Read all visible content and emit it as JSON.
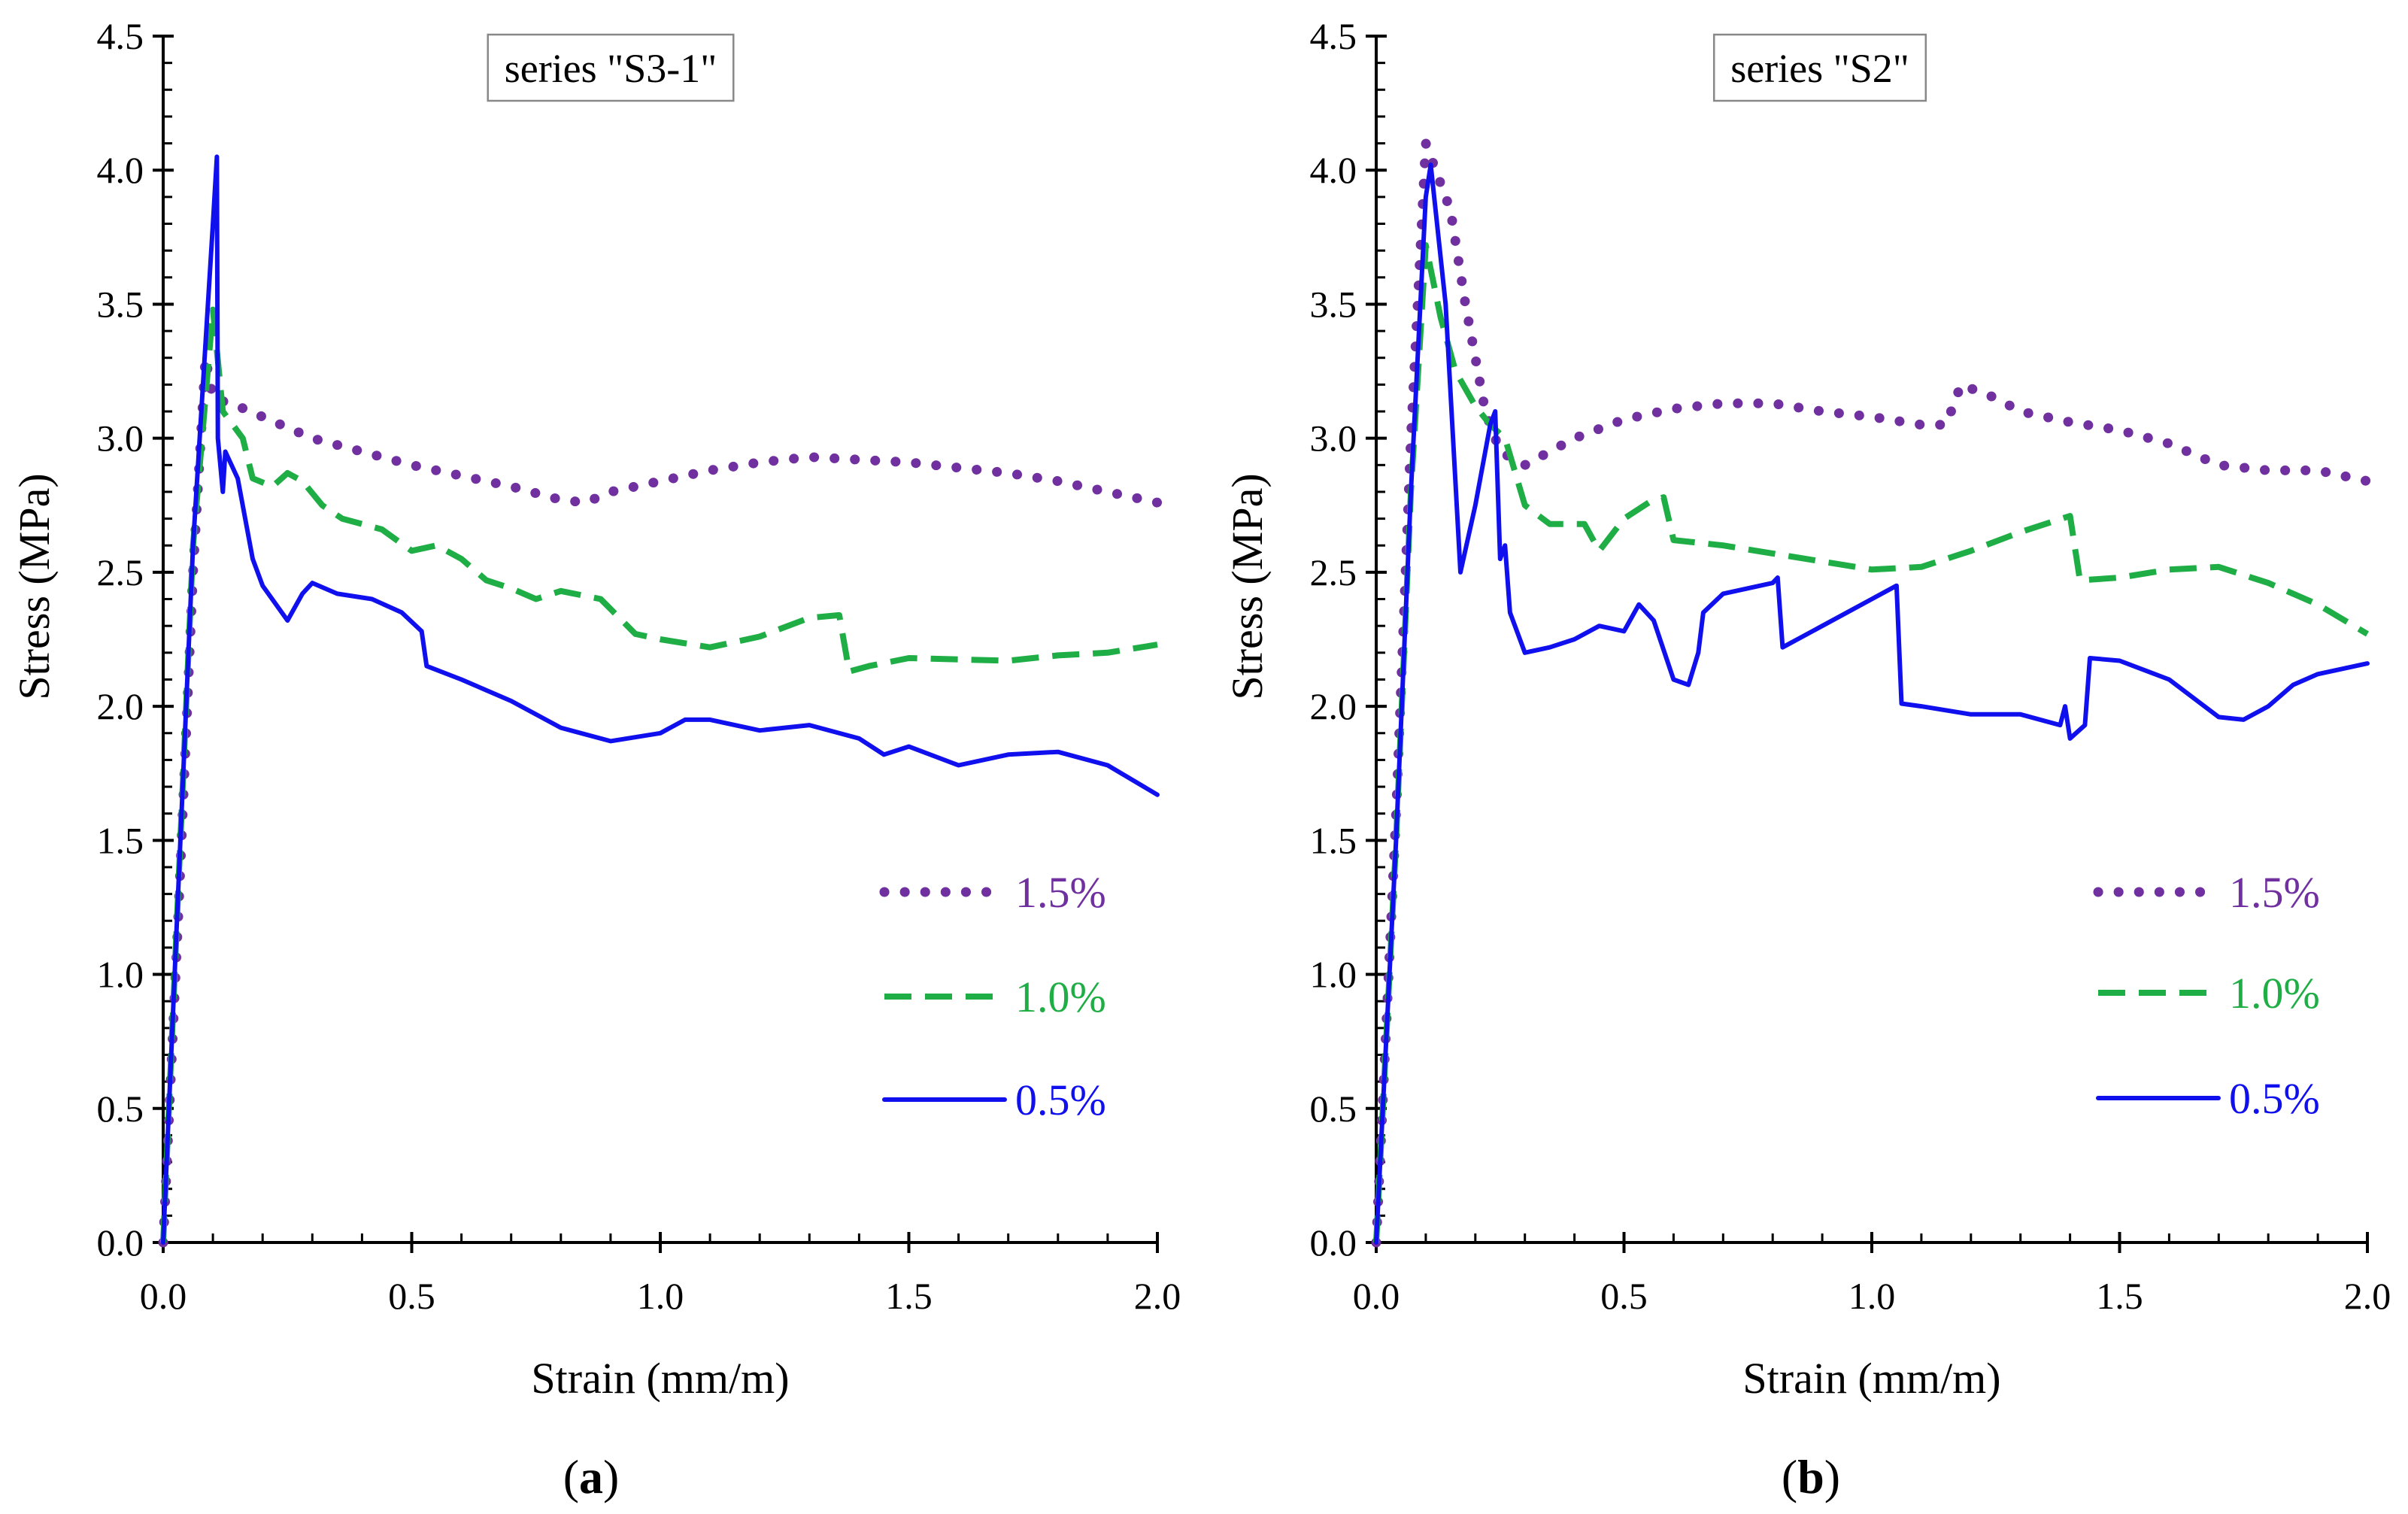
{
  "chart_data": [
    {
      "type": "line",
      "title": "series \"S3-1\"",
      "panel_label": "a",
      "xlabel": "Strain (mm/m)",
      "ylabel": "Stress (MPa)",
      "xlim": [
        0,
        2.0
      ],
      "ylim": [
        0,
        4.5
      ],
      "xticks": [
        "0.0",
        "0.5",
        "1.0",
        "1.5",
        "2.0"
      ],
      "yticks": [
        "0.0",
        "0.5",
        "1.0",
        "1.5",
        "2.0",
        "2.5",
        "3.0",
        "3.5",
        "4.0",
        "4.5"
      ],
      "grid": false,
      "legend_position": "bottom-right",
      "series": [
        {
          "name": "1.5%",
          "color": "#7030a0",
          "style": "dotted",
          "points": [
            [
              0,
              0
            ],
            [
              0.03,
              1.2
            ],
            [
              0.06,
              2.5
            ],
            [
              0.085,
              3.3
            ],
            [
              0.1,
              3.15
            ],
            [
              0.15,
              3.12
            ],
            [
              0.2,
              3.08
            ],
            [
              0.3,
              3.0
            ],
            [
              0.4,
              2.95
            ],
            [
              0.5,
              2.9
            ],
            [
              0.6,
              2.86
            ],
            [
              0.7,
              2.82
            ],
            [
              0.8,
              2.77
            ],
            [
              0.85,
              2.76
            ],
            [
              0.9,
              2.8
            ],
            [
              1.0,
              2.84
            ],
            [
              1.1,
              2.88
            ],
            [
              1.2,
              2.91
            ],
            [
              1.3,
              2.93
            ],
            [
              1.4,
              2.92
            ],
            [
              1.5,
              2.91
            ],
            [
              1.6,
              2.89
            ],
            [
              1.7,
              2.87
            ],
            [
              1.8,
              2.84
            ],
            [
              1.9,
              2.8
            ],
            [
              2.0,
              2.76
            ]
          ]
        },
        {
          "name": "1.0%",
          "color": "#1fae45",
          "style": "dashed",
          "points": [
            [
              0,
              0
            ],
            [
              0.03,
              1.3
            ],
            [
              0.06,
              2.6
            ],
            [
              0.1,
              3.48
            ],
            [
              0.12,
              3.1
            ],
            [
              0.16,
              3.0
            ],
            [
              0.18,
              2.85
            ],
            [
              0.22,
              2.82
            ],
            [
              0.25,
              2.87
            ],
            [
              0.28,
              2.84
            ],
            [
              0.32,
              2.75
            ],
            [
              0.36,
              2.7
            ],
            [
              0.4,
              2.68
            ],
            [
              0.44,
              2.66
            ],
            [
              0.5,
              2.58
            ],
            [
              0.55,
              2.6
            ],
            [
              0.6,
              2.55
            ],
            [
              0.65,
              2.47
            ],
            [
              0.7,
              2.44
            ],
            [
              0.75,
              2.4
            ],
            [
              0.8,
              2.43
            ],
            [
              0.88,
              2.4
            ],
            [
              0.95,
              2.27
            ],
            [
              1.0,
              2.25
            ],
            [
              1.1,
              2.22
            ],
            [
              1.2,
              2.26
            ],
            [
              1.3,
              2.33
            ],
            [
              1.36,
              2.34
            ],
            [
              1.38,
              2.13
            ],
            [
              1.42,
              2.15
            ],
            [
              1.5,
              2.18
            ],
            [
              1.7,
              2.17
            ],
            [
              1.8,
              2.19
            ],
            [
              1.9,
              2.2
            ],
            [
              2.0,
              2.23
            ]
          ]
        },
        {
          "name": "0.5%",
          "color": "#1010ee",
          "style": "solid",
          "points": [
            [
              0,
              0
            ],
            [
              0.03,
              1.3
            ],
            [
              0.06,
              2.6
            ],
            [
              0.08,
              3.2
            ],
            [
              0.09,
              3.5
            ],
            [
              0.1,
              3.8
            ],
            [
              0.108,
              4.05
            ],
            [
              0.11,
              3.0
            ],
            [
              0.12,
              2.8
            ],
            [
              0.125,
              2.95
            ],
            [
              0.15,
              2.85
            ],
            [
              0.18,
              2.55
            ],
            [
              0.2,
              2.45
            ],
            [
              0.25,
              2.32
            ],
            [
              0.28,
              2.42
            ],
            [
              0.3,
              2.46
            ],
            [
              0.35,
              2.42
            ],
            [
              0.42,
              2.4
            ],
            [
              0.48,
              2.35
            ],
            [
              0.52,
              2.28
            ],
            [
              0.53,
              2.15
            ],
            [
              0.6,
              2.1
            ],
            [
              0.7,
              2.02
            ],
            [
              0.8,
              1.92
            ],
            [
              0.9,
              1.87
            ],
            [
              1.0,
              1.9
            ],
            [
              1.05,
              1.95
            ],
            [
              1.1,
              1.95
            ],
            [
              1.2,
              1.91
            ],
            [
              1.3,
              1.93
            ],
            [
              1.4,
              1.88
            ],
            [
              1.45,
              1.82
            ],
            [
              1.5,
              1.85
            ],
            [
              1.6,
              1.78
            ],
            [
              1.7,
              1.82
            ],
            [
              1.8,
              1.83
            ],
            [
              1.9,
              1.78
            ],
            [
              2.0,
              1.67
            ]
          ]
        }
      ]
    },
    {
      "type": "line",
      "title": "series \"S2\"",
      "panel_label": "b",
      "xlabel": "Strain (mm/m)",
      "ylabel": "Stress (MPa)",
      "xlim": [
        0,
        2.0
      ],
      "ylim": [
        0,
        4.5
      ],
      "xticks": [
        "0.0",
        "0.5",
        "1.0",
        "1.5",
        "2.0"
      ],
      "yticks": [
        "0.0",
        "0.5",
        "1.0",
        "1.5",
        "2.0",
        "2.5",
        "3.0",
        "3.5",
        "4.0",
        "4.5"
      ],
      "grid": false,
      "legend_position": "bottom-right",
      "series": [
        {
          "name": "1.5%",
          "color": "#7030a0",
          "style": "dotted",
          "points": [
            [
              0,
              0
            ],
            [
              0.04,
              1.6
            ],
            [
              0.07,
              3.0
            ],
            [
              0.1,
              4.1
            ],
            [
              0.15,
              3.85
            ],
            [
              0.18,
              3.5
            ],
            [
              0.22,
              3.1
            ],
            [
              0.25,
              2.95
            ],
            [
              0.3,
              2.9
            ],
            [
              0.4,
              3.0
            ],
            [
              0.5,
              3.07
            ],
            [
              0.6,
              3.11
            ],
            [
              0.7,
              3.13
            ],
            [
              0.8,
              3.13
            ],
            [
              0.9,
              3.1
            ],
            [
              1.0,
              3.08
            ],
            [
              1.1,
              3.05
            ],
            [
              1.15,
              3.05
            ],
            [
              1.18,
              3.2
            ],
            [
              1.25,
              3.15
            ],
            [
              1.3,
              3.1
            ],
            [
              1.4,
              3.06
            ],
            [
              1.5,
              3.03
            ],
            [
              1.6,
              2.98
            ],
            [
              1.7,
              2.9
            ],
            [
              1.8,
              2.88
            ],
            [
              1.9,
              2.88
            ],
            [
              2.0,
              2.84
            ]
          ]
        },
        {
          "name": "1.0%",
          "color": "#1fae45",
          "style": "dashed",
          "points": [
            [
              0,
              0
            ],
            [
              0.04,
              1.5
            ],
            [
              0.07,
              2.8
            ],
            [
              0.1,
              3.72
            ],
            [
              0.13,
              3.45
            ],
            [
              0.16,
              3.25
            ],
            [
              0.2,
              3.12
            ],
            [
              0.23,
              3.05
            ],
            [
              0.26,
              3.0
            ],
            [
              0.3,
              2.75
            ],
            [
              0.35,
              2.68
            ],
            [
              0.42,
              2.68
            ],
            [
              0.45,
              2.58
            ],
            [
              0.5,
              2.7
            ],
            [
              0.55,
              2.76
            ],
            [
              0.58,
              2.78
            ],
            [
              0.6,
              2.62
            ],
            [
              0.7,
              2.6
            ],
            [
              0.8,
              2.57
            ],
            [
              0.9,
              2.54
            ],
            [
              1.0,
              2.51
            ],
            [
              1.1,
              2.52
            ],
            [
              1.2,
              2.58
            ],
            [
              1.3,
              2.65
            ],
            [
              1.4,
              2.71
            ],
            [
              1.42,
              2.47
            ],
            [
              1.5,
              2.48
            ],
            [
              1.6,
              2.51
            ],
            [
              1.7,
              2.52
            ],
            [
              1.8,
              2.46
            ],
            [
              1.9,
              2.38
            ],
            [
              2.0,
              2.27
            ]
          ]
        },
        {
          "name": "0.5%",
          "color": "#1010ee",
          "style": "solid",
          "points": [
            [
              0,
              0
            ],
            [
              0.04,
              1.5
            ],
            [
              0.07,
              2.8
            ],
            [
              0.1,
              3.9
            ],
            [
              0.11,
              4.02
            ],
            [
              0.14,
              3.5
            ],
            [
              0.17,
              2.5
            ],
            [
              0.2,
              2.75
            ],
            [
              0.23,
              3.05
            ],
            [
              0.24,
              3.1
            ],
            [
              0.25,
              2.55
            ],
            [
              0.26,
              2.6
            ],
            [
              0.27,
              2.35
            ],
            [
              0.3,
              2.2
            ],
            [
              0.35,
              2.22
            ],
            [
              0.4,
              2.25
            ],
            [
              0.45,
              2.3
            ],
            [
              0.5,
              2.28
            ],
            [
              0.53,
              2.38
            ],
            [
              0.56,
              2.32
            ],
            [
              0.6,
              2.1
            ],
            [
              0.63,
              2.08
            ],
            [
              0.65,
              2.2
            ],
            [
              0.66,
              2.35
            ],
            [
              0.7,
              2.42
            ],
            [
              0.8,
              2.46
            ],
            [
              0.81,
              2.48
            ],
            [
              0.82,
              2.22
            ],
            [
              0.9,
              2.3
            ],
            [
              1.0,
              2.4
            ],
            [
              1.05,
              2.45
            ],
            [
              1.06,
              2.01
            ],
            [
              1.1,
              2.0
            ],
            [
              1.2,
              1.97
            ],
            [
              1.3,
              1.97
            ],
            [
              1.38,
              1.93
            ],
            [
              1.39,
              2.0
            ],
            [
              1.4,
              1.88
            ],
            [
              1.43,
              1.93
            ],
            [
              1.44,
              2.18
            ],
            [
              1.5,
              2.17
            ],
            [
              1.6,
              2.1
            ],
            [
              1.7,
              1.96
            ],
            [
              1.75,
              1.95
            ],
            [
              1.8,
              2.0
            ],
            [
              1.85,
              2.08
            ],
            [
              1.9,
              2.12
            ],
            [
              2.0,
              2.16
            ]
          ]
        }
      ]
    }
  ]
}
